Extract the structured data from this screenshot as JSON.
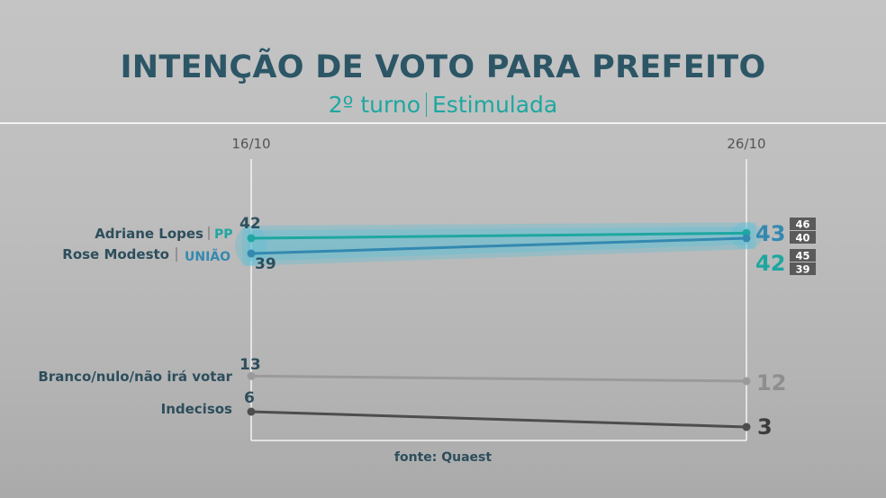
{
  "header": {
    "title": "INTENÇÃO DE VOTO PARA PREFEITO",
    "subtitle_left": "2º turno",
    "subtitle_right": "Estimulada"
  },
  "source": "fonte: Quaest",
  "colors": {
    "adriane": "#1ea7a0",
    "rose": "#3389b0",
    "branco": "#9a9a9a",
    "indecisos": "#4d4d4d",
    "label_dark": "#2d4e5c",
    "margin_box": "#5a5a5a",
    "band": "#5cbfd8"
  },
  "chart_data": {
    "type": "line",
    "title": "INTENÇÃO DE VOTO PARA PREFEITO",
    "subtitle": "2º turno | Estimulada",
    "x": [
      "16/10",
      "26/10"
    ],
    "ylim": [
      0,
      50
    ],
    "grid": false,
    "series": [
      {
        "key": "adriane",
        "name": "Adriane Lopes",
        "party": "PP",
        "values": [
          42,
          43
        ],
        "labels": [
          "42",
          "43"
        ],
        "interval_end": [
          "46",
          "40"
        ]
      },
      {
        "key": "rose",
        "name": "Rose Modesto",
        "party": "UNIÃO",
        "values": [
          39,
          42
        ],
        "labels": [
          "39",
          "42"
        ],
        "interval_end": [
          "45",
          "39"
        ]
      },
      {
        "key": "branco",
        "name": "Branco/nulo/não irá votar",
        "values": [
          13,
          12
        ],
        "labels": [
          "13",
          "12"
        ]
      },
      {
        "key": "indecisos",
        "name": "Indecisos",
        "values": [
          6,
          3
        ],
        "labels": [
          "6",
          "3"
        ]
      }
    ]
  }
}
